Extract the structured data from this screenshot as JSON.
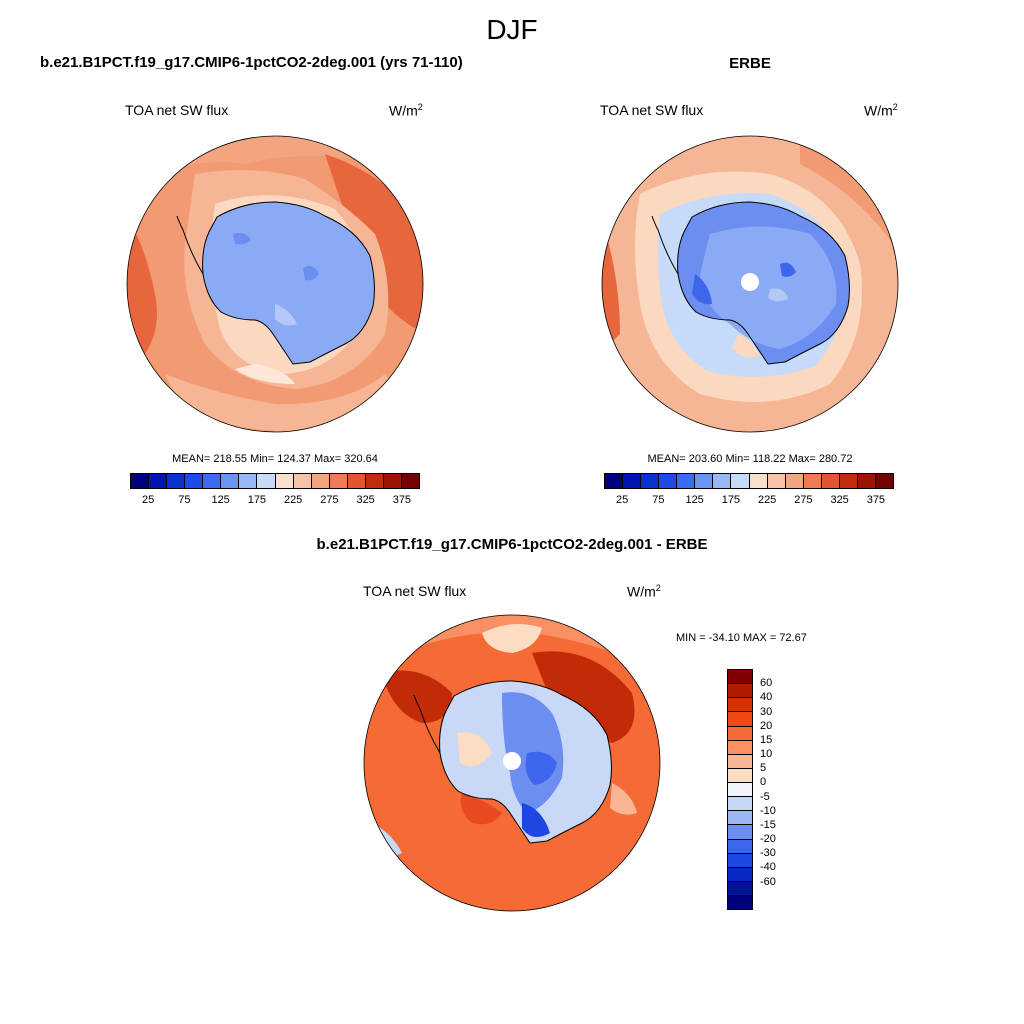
{
  "title": "DJF",
  "panels": [
    {
      "case": "b.e21.B1PCT.f19_g17.CMIP6-1pctCO2-2deg.001 (yrs 71-110)",
      "variable": "TOA net SW flux",
      "units_base": "W/m",
      "units_exp": "2",
      "stats": "MEAN= 218.55  Min= 124.37  Max= 320.64"
    },
    {
      "case": "ERBE",
      "variable": "TOA net SW flux",
      "units_base": "W/m",
      "units_exp": "2",
      "stats": "MEAN= 203.60  Min= 118.22  Max= 280.72"
    },
    {
      "case": "b.e21.B1PCT.f19_g17.CMIP6-1pctCO2-2deg.001 - ERBE",
      "variable": "TOA net SW flux",
      "units_base": "W/m",
      "units_exp": "2",
      "stats": "MIN = -34.10 MAX =  72.67"
    }
  ],
  "colorbar_abs": {
    "colors": [
      "#00007f",
      "#0015b0",
      "#0a30d0",
      "#1e4ae6",
      "#3c6cf0",
      "#6a94f5",
      "#9ab8f8",
      "#c6daf9",
      "#f8e0cc",
      "#f6c4a8",
      "#f3a581",
      "#ee7b56",
      "#e35530",
      "#c02c0c",
      "#9c1402",
      "#740000"
    ],
    "tick_labels": [
      "25",
      "75",
      "125",
      "175",
      "225",
      "275",
      "325",
      "375"
    ]
  },
  "colorbar_diff": {
    "colors": [
      "#7f0000",
      "#b01a00",
      "#d83000",
      "#f04a10",
      "#f56a35",
      "#f89064",
      "#fab694",
      "#fddcc4",
      "#f2f4fc",
      "#c6d6f6",
      "#9cb6f2",
      "#6c8ef0",
      "#3e66ec",
      "#1e46e0",
      "#0a28c6",
      "#00129a",
      "#00007a"
    ],
    "tick_labels": [
      "60",
      "40",
      "30",
      "20",
      "15",
      "10",
      "5",
      "0",
      "-5",
      "-10",
      "-15",
      "-20",
      "-30",
      "-40",
      "-60"
    ]
  },
  "map_colors": {
    "ice": "#8aaaf6",
    "ice_dark": "#6c8ef0",
    "ice_light": "#b4c8f6",
    "warm_light": "#fbd8c0",
    "warm_mid": "#f6b594",
    "warm": "#f29a72",
    "warm_strong": "#e8663e",
    "pale": "#fde8d8",
    "coast": "#000000",
    "diff_red": "#e84a22",
    "diff_darkred": "#c22a08",
    "diff_blue": "#3e6cec",
    "diff_paleblue": "#c8d8f6"
  }
}
